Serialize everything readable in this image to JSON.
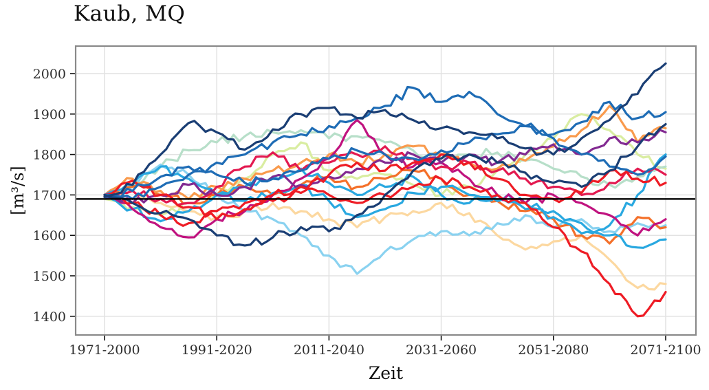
{
  "chart_data": {
    "type": "line",
    "title": "Kaub, MQ",
    "xlabel": "Zeit",
    "ylabel": "[m³/s]",
    "legend": "none",
    "grid": true,
    "background_color": "#ffffff",
    "grid_color": "#e2e2e2",
    "border_color": "#898989",
    "tick_label_color": "#2d2d2d",
    "x_tick_labels": [
      "1971-2000",
      "1991-2020",
      "2011-2040",
      "2031-2060",
      "2051-2080",
      "2071-2100"
    ],
    "y_ticks": [
      1400,
      1500,
      1600,
      1700,
      1800,
      1900,
      2000
    ],
    "ylim": [
      1355,
      2065
    ],
    "reference_line": {
      "value": 1690,
      "color": "#000000"
    },
    "x_sampling": "30-year moving windows; each series sampled every 5 years from window 1971-2000 to window 2071-2100 (21 points per series)",
    "x_window_start_years": [
      1971,
      1976,
      1981,
      1986,
      1991,
      1996,
      2001,
      2006,
      2011,
      2016,
      2021,
      2026,
      2031,
      2036,
      2041,
      2046,
      2051,
      2056,
      2061,
      2066,
      2071
    ],
    "series": [
      {
        "name": "peach",
        "color": "#fcd8a0",
        "values": [
          1700,
          1690,
          1680,
          1660,
          1645,
          1660,
          1680,
          1660,
          1640,
          1620,
          1645,
          1660,
          1680,
          1655,
          1600,
          1565,
          1585,
          1600,
          1540,
          1470,
          1480
        ]
      },
      {
        "name": "yellow-green",
        "color": "#d9eda1",
        "values": [
          1690,
          1670,
          1650,
          1680,
          1700,
          1740,
          1800,
          1830,
          1760,
          1740,
          1750,
          1725,
          1700,
          1720,
          1760,
          1800,
          1840,
          1900,
          1860,
          1800,
          1765
        ]
      },
      {
        "name": "mint",
        "color": "#b7dfc9",
        "values": [
          1700,
          1720,
          1770,
          1810,
          1830,
          1845,
          1855,
          1860,
          1840,
          1845,
          1830,
          1810,
          1790,
          1800,
          1805,
          1785,
          1765,
          1745,
          1725,
          1745,
          1770
        ]
      },
      {
        "name": "pale-blue",
        "color": "#8ad2f0",
        "values": [
          1700,
          1720,
          1775,
          1750,
          1700,
          1660,
          1640,
          1600,
          1550,
          1505,
          1560,
          1590,
          1610,
          1600,
          1630,
          1650,
          1620,
          1640,
          1610,
          1630,
          1625
        ]
      },
      {
        "name": "red-orange",
        "color": "#f4702a",
        "values": [
          1695,
          1720,
          1700,
          1680,
          1700,
          1720,
          1700,
          1725,
          1745,
          1720,
          1740,
          1760,
          1740,
          1700,
          1685,
          1660,
          1640,
          1600,
          1580,
          1645,
          1620
        ]
      },
      {
        "name": "orange",
        "color": "#f99a4c",
        "values": [
          1700,
          1740,
          1710,
          1690,
          1720,
          1740,
          1760,
          1780,
          1800,
          1780,
          1800,
          1820,
          1800,
          1780,
          1765,
          1785,
          1820,
          1860,
          1920,
          1830,
          1865
        ]
      },
      {
        "name": "cyan-2",
        "color": "#29a8e0",
        "values": [
          1695,
          1665,
          1635,
          1660,
          1700,
          1720,
          1745,
          1765,
          1730,
          1700,
          1720,
          1745,
          1700,
          1680,
          1700,
          1680,
          1660,
          1630,
          1600,
          1570,
          1590
        ]
      },
      {
        "name": "cyan-1",
        "color": "#29a8e0",
        "values": [
          1700,
          1725,
          1770,
          1740,
          1700,
          1685,
          1705,
          1725,
          1685,
          1645,
          1665,
          1705,
          1720,
          1700,
          1685,
          1665,
          1645,
          1605,
          1625,
          1700,
          1800
        ]
      },
      {
        "name": "magenta",
        "color": "#c0137f",
        "values": [
          1700,
          1665,
          1620,
          1595,
          1640,
          1660,
          1700,
          1740,
          1790,
          1885,
          1800,
          1770,
          1780,
          1740,
          1700,
          1680,
          1700,
          1680,
          1650,
          1600,
          1640
        ]
      },
      {
        "name": "crimson",
        "color": "#e31a50",
        "values": [
          1700,
          1710,
          1690,
          1680,
          1720,
          1770,
          1805,
          1760,
          1780,
          1800,
          1820,
          1790,
          1770,
          1780,
          1760,
          1740,
          1720,
          1700,
          1730,
          1765,
          1750
        ]
      },
      {
        "name": "purple",
        "color": "#822a91",
        "values": [
          1695,
          1680,
          1700,
          1725,
          1700,
          1720,
          1745,
          1725,
          1745,
          1765,
          1780,
          1800,
          1780,
          1800,
          1780,
          1800,
          1825,
          1800,
          1840,
          1830,
          1855
        ]
      },
      {
        "name": "red-2",
        "color": "#ee1c25",
        "values": [
          1695,
          1735,
          1700,
          1670,
          1640,
          1665,
          1685,
          1705,
          1750,
          1780,
          1760,
          1780,
          1800,
          1780,
          1740,
          1700,
          1690,
          1705,
          1760,
          1740,
          1730
        ]
      },
      {
        "name": "red-1",
        "color": "#ee1c25",
        "values": [
          1700,
          1680,
          1650,
          1630,
          1660,
          1680,
          1700,
          1720,
          1700,
          1680,
          1700,
          1720,
          1740,
          1720,
          1700,
          1680,
          1620,
          1560,
          1480,
          1400,
          1460
        ]
      },
      {
        "name": "blue-2",
        "color": "#1e6cb5",
        "values": [
          1695,
          1710,
          1745,
          1770,
          1750,
          1730,
          1740,
          1760,
          1790,
          1810,
          1800,
          1790,
          1810,
          1830,
          1850,
          1870,
          1840,
          1800,
          1770,
          1750,
          1795
        ]
      },
      {
        "name": "blue-1",
        "color": "#1e6cb5",
        "values": [
          1700,
          1690,
          1720,
          1750,
          1780,
          1800,
          1830,
          1850,
          1870,
          1890,
          1920,
          1965,
          1930,
          1955,
          1900,
          1870,
          1850,
          1880,
          1930,
          1890,
          1905
        ]
      },
      {
        "name": "navy-2",
        "color": "#1a3e74",
        "values": [
          1700,
          1680,
          1655,
          1640,
          1600,
          1575,
          1595,
          1620,
          1610,
          1650,
          1700,
          1760,
          1790,
          1800,
          1780,
          1755,
          1730,
          1720,
          1760,
          1820,
          1875
        ]
      },
      {
        "name": "navy-1",
        "color": "#1a3e74",
        "values": [
          1695,
          1725,
          1800,
          1878,
          1855,
          1812,
          1862,
          1900,
          1915,
          1890,
          1910,
          1885,
          1865,
          1855,
          1840,
          1815,
          1800,
          1840,
          1885,
          1950,
          2025
        ]
      }
    ]
  }
}
